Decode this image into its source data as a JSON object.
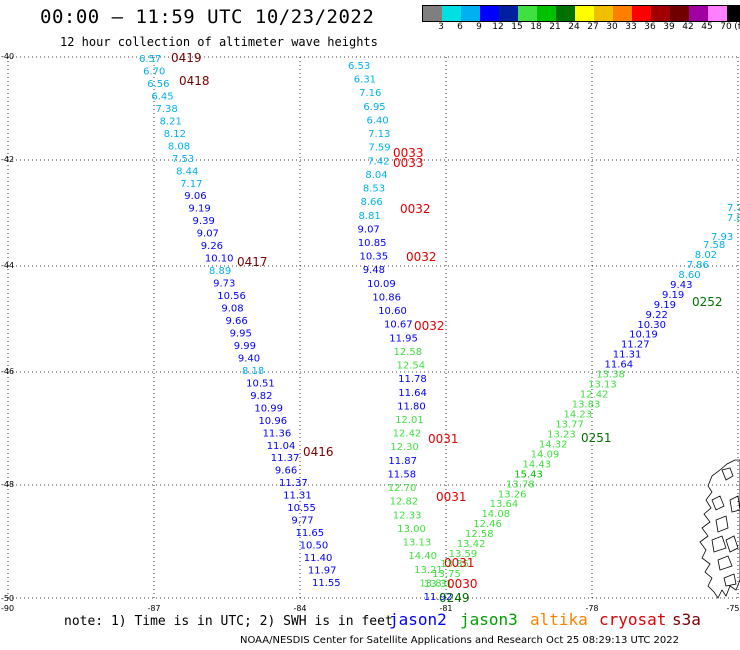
{
  "header": {
    "title": "00:00 – 11:59 UTC 10/23/2022",
    "subtitle": "12 hour collection of altimeter wave heights"
  },
  "legend": {
    "colors": [
      "#7f7f7f",
      "#00e0e0",
      "#00b0f0",
      "#0000ff",
      "#0020a0",
      "#40e040",
      "#00c000",
      "#007000",
      "#ffff00",
      "#f0c000",
      "#ff8000",
      "#ff0000",
      "#a00000",
      "#700000",
      "#a000a0",
      "#ff80ff",
      "#000000"
    ],
    "labels": [
      "3",
      "6",
      "9",
      "12",
      "15",
      "18",
      "21",
      "24",
      "27",
      "30",
      "33",
      "36",
      "39",
      "42",
      "45",
      "70",
      "(ft)"
    ],
    "unit": "(ft)"
  },
  "axes": {
    "lon_labels": [
      "-87",
      "-84",
      "-81",
      "-78",
      "-75"
    ],
    "lat_labels": [
      "-40",
      "-42",
      "-44",
      "-46",
      "-48",
      "-50"
    ],
    "corner_label": "-90"
  },
  "tracks": [
    {
      "id": "track-a",
      "points": [
        {
          "t": "6.57",
          "c": "#00b0f0"
        },
        {
          "t": "6.70",
          "c": "#00b0f0"
        },
        {
          "t": "6.56",
          "c": "#00b0f0"
        },
        {
          "t": "6.45",
          "c": "#00b0f0"
        },
        {
          "t": "7.38",
          "c": "#00b0f0"
        },
        {
          "t": "8.21",
          "c": "#00b0f0"
        },
        {
          "t": "8.12",
          "c": "#00b0f0"
        },
        {
          "t": "8.08",
          "c": "#00b0f0"
        },
        {
          "t": "7.53",
          "c": "#00b0f0"
        },
        {
          "t": "8.44",
          "c": "#00b0f0"
        },
        {
          "t": "7.17",
          "c": "#00b0f0"
        },
        {
          "t": "9.06",
          "c": "#0000ff"
        },
        {
          "t": "9.19",
          "c": "#0000ff"
        },
        {
          "t": "9.39",
          "c": "#0000ff"
        },
        {
          "t": "9.07",
          "c": "#0000ff"
        },
        {
          "t": "9.26",
          "c": "#0000ff"
        },
        {
          "t": "10.10",
          "c": "#0000ff"
        },
        {
          "t": "8.89",
          "c": "#00b0f0"
        },
        {
          "t": "9.73",
          "c": "#0000ff"
        },
        {
          "t": "10.56",
          "c": "#0000ff"
        },
        {
          "t": "9.08",
          "c": "#0000ff"
        },
        {
          "t": "9.66",
          "c": "#0000ff"
        },
        {
          "t": "9.95",
          "c": "#0000ff"
        },
        {
          "t": "9.99",
          "c": "#0000ff"
        },
        {
          "t": "9.40",
          "c": "#0000ff"
        },
        {
          "t": "8.18",
          "c": "#00b0f0"
        },
        {
          "t": "10.51",
          "c": "#0000ff"
        },
        {
          "t": "9.82",
          "c": "#0000ff"
        },
        {
          "t": "10.99",
          "c": "#0000ff"
        },
        {
          "t": "10.96",
          "c": "#0000ff"
        },
        {
          "t": "11.36",
          "c": "#0000ff"
        },
        {
          "t": "11.04",
          "c": "#0000ff"
        },
        {
          "t": "11.37",
          "c": "#0000ff"
        },
        {
          "t": "9.66",
          "c": "#0000ff"
        },
        {
          "t": "11.37",
          "c": "#0000ff"
        },
        {
          "t": "11.31",
          "c": "#0000ff"
        },
        {
          "t": "10.55",
          "c": "#0000ff"
        },
        {
          "t": "9.77",
          "c": "#0000ff"
        },
        {
          "t": "11.65",
          "c": "#0000ff"
        },
        {
          "t": "10.50",
          "c": "#0000ff"
        },
        {
          "t": "11.40",
          "c": "#0000ff"
        },
        {
          "t": "11.97",
          "c": "#0000ff"
        },
        {
          "t": "11.55",
          "c": "#0000ff"
        }
      ]
    },
    {
      "id": "track-b",
      "points": [
        {
          "t": "6.53",
          "c": "#00b0f0"
        },
        {
          "t": "6.31",
          "c": "#00b0f0"
        },
        {
          "t": "7.16",
          "c": "#00b0f0"
        },
        {
          "t": "6.95",
          "c": "#00b0f0"
        },
        {
          "t": "6.40",
          "c": "#00b0f0"
        },
        {
          "t": "7.13",
          "c": "#00b0f0"
        },
        {
          "t": "7.59",
          "c": "#00b0f0"
        },
        {
          "t": "7.42",
          "c": "#00b0f0"
        },
        {
          "t": "8.04",
          "c": "#00b0f0"
        },
        {
          "t": "8.53",
          "c": "#00b0f0"
        },
        {
          "t": "8.66",
          "c": "#00b0f0"
        },
        {
          "t": "8.81",
          "c": "#00b0f0"
        },
        {
          "t": "9.07",
          "c": "#0000ff"
        },
        {
          "t": "10.85",
          "c": "#0000ff"
        },
        {
          "t": "10.35",
          "c": "#0000ff"
        },
        {
          "t": "9.48",
          "c": "#0000ff"
        },
        {
          "t": "10.09",
          "c": "#0000ff"
        },
        {
          "t": "10.86",
          "c": "#0000ff"
        },
        {
          "t": "10.60",
          "c": "#0000ff"
        },
        {
          "t": "10.67",
          "c": "#0000ff"
        },
        {
          "t": "11.95",
          "c": "#0000ff"
        },
        {
          "t": "12.58",
          "c": "#40e040"
        },
        {
          "t": "12.54",
          "c": "#40e040"
        },
        {
          "t": "11.78",
          "c": "#0000ff"
        },
        {
          "t": "11.64",
          "c": "#0000ff"
        },
        {
          "t": "11.80",
          "c": "#0000ff"
        },
        {
          "t": "12.01",
          "c": "#40e040"
        },
        {
          "t": "12.42",
          "c": "#40e040"
        },
        {
          "t": "12.30",
          "c": "#40e040"
        },
        {
          "t": "11.87",
          "c": "#0000ff"
        },
        {
          "t": "11.58",
          "c": "#0000ff"
        },
        {
          "t": "12.70",
          "c": "#40e040"
        },
        {
          "t": "12.82",
          "c": "#40e040"
        },
        {
          "t": "12.33",
          "c": "#40e040"
        },
        {
          "t": "13.00",
          "c": "#40e040"
        },
        {
          "t": "13.13",
          "c": "#40e040"
        },
        {
          "t": "14.40",
          "c": "#40e040"
        },
        {
          "t": "13.21",
          "c": "#40e040"
        },
        {
          "t": "13.81",
          "c": "#40e040"
        },
        {
          "t": "11.92",
          "c": "#0000ff"
        }
      ]
    },
    {
      "id": "track-c",
      "points": [
        {
          "t": "7.58",
          "c": "#00b0f0"
        },
        {
          "t": "8.02",
          "c": "#00b0f0"
        },
        {
          "t": "7.86",
          "c": "#00b0f0"
        },
        {
          "t": "8.60",
          "c": "#00b0f0"
        },
        {
          "t": "9.43",
          "c": "#0000ff"
        },
        {
          "t": "9.19",
          "c": "#0000ff"
        },
        {
          "t": "9.19",
          "c": "#0000ff"
        },
        {
          "t": "9.22",
          "c": "#0000ff"
        },
        {
          "t": "10.30",
          "c": "#0000ff"
        },
        {
          "t": "10.19",
          "c": "#0000ff"
        },
        {
          "t": "11.27",
          "c": "#0000ff"
        },
        {
          "t": "11.31",
          "c": "#0000ff"
        },
        {
          "t": "11.64",
          "c": "#0000ff"
        },
        {
          "t": "13.38",
          "c": "#40e040"
        },
        {
          "t": "13.13",
          "c": "#40e040"
        },
        {
          "t": "12.42",
          "c": "#40e040"
        },
        {
          "t": "13.83",
          "c": "#40e040"
        },
        {
          "t": "14.23",
          "c": "#40e040"
        },
        {
          "t": "13.77",
          "c": "#40e040"
        },
        {
          "t": "13.23",
          "c": "#40e040"
        },
        {
          "t": "14.32",
          "c": "#40e040"
        },
        {
          "t": "14.09",
          "c": "#40e040"
        },
        {
          "t": "14.43",
          "c": "#40e040"
        },
        {
          "t": "15.43",
          "c": "#00c000"
        },
        {
          "t": "13.78",
          "c": "#40e040"
        },
        {
          "t": "13.26",
          "c": "#40e040"
        },
        {
          "t": "13.64",
          "c": "#40e040"
        },
        {
          "t": "14.08",
          "c": "#40e040"
        },
        {
          "t": "12.46",
          "c": "#40e040"
        },
        {
          "t": "12.58",
          "c": "#40e040"
        },
        {
          "t": "13.42",
          "c": "#40e040"
        },
        {
          "t": "13.59",
          "c": "#40e040"
        },
        {
          "t": "13.35",
          "c": "#40e040"
        },
        {
          "t": "13.75",
          "c": "#40e040"
        },
        {
          "t": "13.31",
          "c": "#40e040"
        }
      ]
    }
  ],
  "time_tags": [
    {
      "t": "0419",
      "c": "#7a0000"
    },
    {
      "t": "0418",
      "c": "#7a0000"
    },
    {
      "t": "0417",
      "c": "#7a0000"
    },
    {
      "t": "0416",
      "c": "#7a0000"
    },
    {
      "t": "0033",
      "c": "#e00000"
    },
    {
      "t": "0033",
      "c": "#e00000"
    },
    {
      "t": "0032",
      "c": "#e00000"
    },
    {
      "t": "0032",
      "c": "#e00000"
    },
    {
      "t": "0032",
      "c": "#e00000"
    },
    {
      "t": "0031",
      "c": "#e00000"
    },
    {
      "t": "0031",
      "c": "#e00000"
    },
    {
      "t": "0031",
      "c": "#e00000"
    },
    {
      "t": "0030",
      "c": "#e00000"
    },
    {
      "t": "0249",
      "c": "#007000"
    },
    {
      "t": "0251",
      "c": "#007000"
    },
    {
      "t": "0252",
      "c": "#007000"
    }
  ],
  "extra_tags": [
    {
      "t": "7.7",
      "c": "#00b0f0"
    },
    {
      "t": "7.8",
      "c": "#00b0f0"
    },
    {
      "t": "7.93",
      "c": "#00b0f0"
    }
  ],
  "note": "note: 1) Time is in UTC; 2) SWH is in feet",
  "satellites": [
    {
      "name": "jason2",
      "color": "#0000ff"
    },
    {
      "name": "jason3",
      "color": "#00a000"
    },
    {
      "name": "altika",
      "color": "#ff8000"
    },
    {
      "name": "cryosat",
      "color": "#e00000"
    },
    {
      "name": "s3a",
      "color": "#7a0000"
    }
  ],
  "footer": "NOAA/NESDIS Center for Satellite Applications and Research   Oct 25 08:29:13 UTC 2022"
}
